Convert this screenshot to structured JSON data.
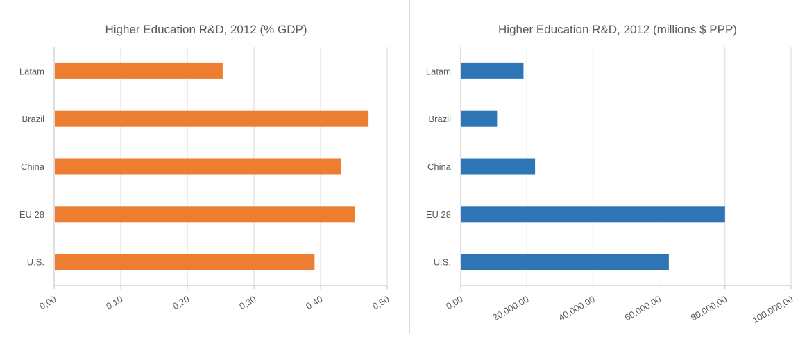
{
  "chart_data": [
    {
      "type": "bar",
      "orientation": "horizontal",
      "title": "Higher Education R&D, 2012 (% GDP)",
      "categories": [
        "Latam",
        "Brazil",
        "China",
        "EU 28",
        "U.S."
      ],
      "values": [
        0.253,
        0.472,
        0.431,
        0.451,
        0.391
      ],
      "xlim": [
        0,
        0.5
      ],
      "ticks": [
        "0,00",
        "0,10",
        "0,20",
        "0,30",
        "0,40",
        "0,50"
      ],
      "tick_values": [
        0,
        0.1,
        0.2,
        0.3,
        0.4,
        0.5
      ],
      "color": "#ED7D31",
      "grid": true
    },
    {
      "type": "bar",
      "orientation": "horizontal",
      "title": "Higher Education R&D, 2012 (millions $ PPP)",
      "categories": [
        "Latam",
        "Brazil",
        "China",
        "EU 28",
        "U.S."
      ],
      "values": [
        19000,
        11000,
        22500,
        80000,
        63000
      ],
      "xlim": [
        0,
        100000
      ],
      "ticks": [
        "0,00",
        "20.000,00",
        "40.000,00",
        "60.000,00",
        "80.000,00",
        "100.000,00"
      ],
      "tick_values": [
        0,
        20000,
        40000,
        60000,
        80000,
        100000
      ],
      "color": "#2E75B6",
      "grid": true
    }
  ]
}
